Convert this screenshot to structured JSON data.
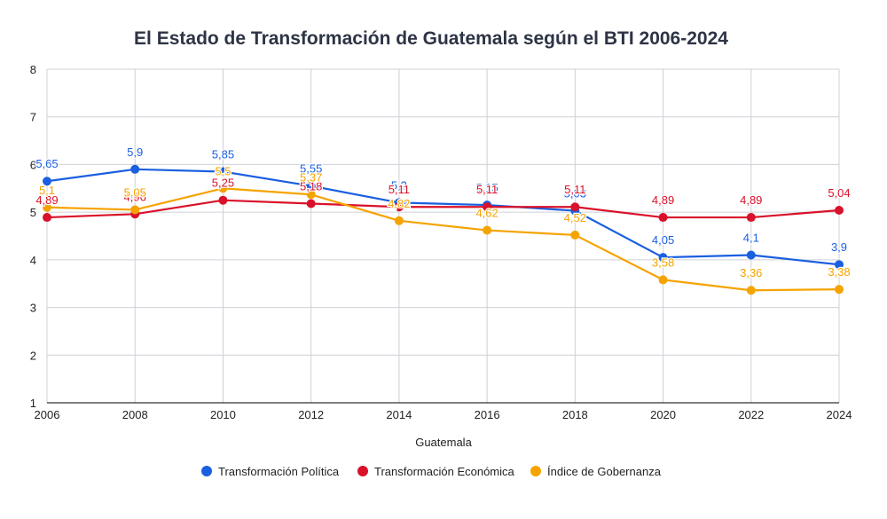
{
  "chart_data": {
    "type": "line",
    "title": "El Estado de Transformación de Guatemala según el BTI 2006-2024",
    "xlabel": "Guatemala",
    "ylabel": "",
    "x": [
      "2006",
      "2008",
      "2010",
      "2012",
      "2014",
      "2016",
      "2018",
      "2020",
      "2022",
      "2024"
    ],
    "ylim": [
      1,
      8
    ],
    "yticks": [
      "1",
      "2",
      "3",
      "4",
      "5",
      "6",
      "7",
      "8"
    ],
    "grid": true,
    "legend_position": "bottom",
    "series": [
      {
        "name": "Transformación Política",
        "color": "#1a5fe0",
        "values": [
          5.65,
          5.9,
          5.85,
          5.55,
          5.2,
          5.15,
          5.03,
          4.05,
          4.1,
          3.9
        ],
        "labels": [
          "5,65",
          "5,9",
          "5,85",
          "5,55",
          "5,2",
          "5,15",
          "5,03",
          "4,05",
          "4,1",
          "3,9"
        ]
      },
      {
        "name": "Transformación Económica",
        "color": "#d9112a",
        "values": [
          4.89,
          4.96,
          5.25,
          5.18,
          5.11,
          5.11,
          5.11,
          4.89,
          4.89,
          5.04
        ],
        "labels": [
          "4,89",
          "4,96",
          "5,25",
          "5,18",
          "5,11",
          "5,11",
          "5,11",
          "4,89",
          "4,89",
          "5,04"
        ]
      },
      {
        "name": "Índice de Gobernanza",
        "color": "#f5a300",
        "values": [
          5.1,
          5.05,
          5.5,
          5.37,
          4.82,
          4.62,
          4.52,
          3.58,
          3.36,
          3.38
        ],
        "labels": [
          "5,1",
          "5,05",
          "5,5",
          "5,37",
          "4,82",
          "4,62",
          "4,52",
          "3,58",
          "3,36",
          "3,38"
        ]
      }
    ]
  }
}
